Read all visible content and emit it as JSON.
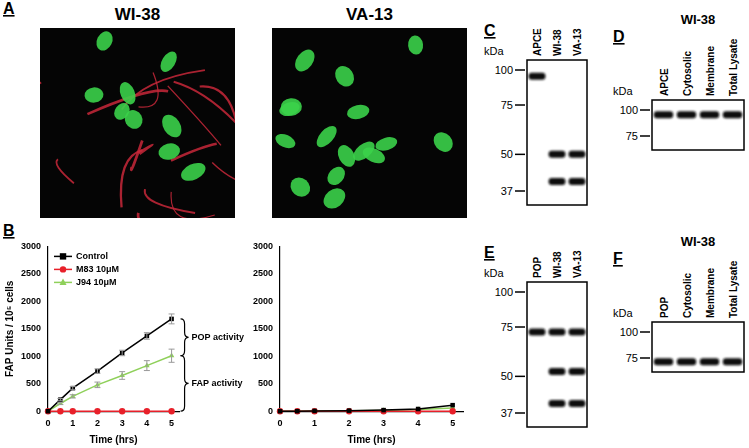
{
  "panels": [
    {
      "label": "A",
      "images": [
        {
          "title": "WI-38"
        },
        {
          "title": "VA-13"
        }
      ]
    },
    {
      "label": "B"
    },
    {
      "label": "C",
      "kda_label": "kDa",
      "markers": [
        100,
        75,
        50,
        37
      ],
      "lanes": [
        "APCE",
        "WI-38",
        "VA-13"
      ],
      "bands": [
        [
          95
        ],
        [
          50,
          40
        ],
        [
          50,
          40
        ]
      ]
    },
    {
      "label": "D",
      "title": "WI-38",
      "kda_label": "kDa",
      "markers": [
        100,
        75
      ],
      "lanes": [
        "APCE",
        "Cytosolic",
        "Membrane",
        "Total Lysate"
      ],
      "bands": [
        [
          95
        ],
        [
          95
        ],
        [
          95
        ],
        [
          95
        ]
      ]
    },
    {
      "label": "E",
      "kda_label": "kDa",
      "markers": [
        100,
        75,
        50,
        37
      ],
      "lanes": [
        "POP",
        "WI-38",
        "VA-13"
      ],
      "bands": [
        [
          72
        ],
        [
          72,
          52,
          40
        ],
        [
          72,
          52,
          40
        ]
      ]
    },
    {
      "label": "F",
      "title": "WI-38",
      "kda_label": "kDa",
      "markers": [
        100,
        75
      ],
      "lanes": [
        "POP",
        "Cytosolic",
        "Membrane",
        "Total Lysate"
      ],
      "bands": [
        [
          72
        ],
        [
          72
        ],
        [
          72
        ],
        [
          72
        ]
      ]
    }
  ],
  "chart_data": [
    {
      "type": "line",
      "x_label": "Time (hrs)",
      "y_label": "FAP Units / 10⁵ cells",
      "x": [
        0,
        0.5,
        1,
        2,
        3,
        4,
        5
      ],
      "xlim": [
        0,
        5.3
      ],
      "xticks": [
        0,
        1,
        2,
        3,
        4,
        5
      ],
      "ylim": [
        0,
        3000
      ],
      "yticks": [
        0,
        500,
        1000,
        1500,
        2000,
        2500,
        3000
      ],
      "grid": false,
      "legend": "upper left",
      "series": [
        {
          "name": "Control",
          "color": "#000000",
          "marker": "square",
          "values": [
            0,
            210,
            420,
            730,
            1060,
            1370,
            1680
          ],
          "errors": [
            0,
            20,
            30,
            40,
            50,
            60,
            90
          ]
        },
        {
          "name": "M83 10μM",
          "color": "#e8202a",
          "marker": "circle",
          "values": [
            0,
            0,
            0,
            0,
            0,
            0,
            0
          ]
        },
        {
          "name": "J94 10μM",
          "color": "#8fd05a",
          "marker": "triangle",
          "values": [
            0,
            140,
            270,
            480,
            650,
            830,
            1010
          ],
          "errors": [
            0,
            20,
            30,
            50,
            70,
            90,
            120
          ]
        }
      ],
      "annotations": [
        "POP activity",
        "FAP activity"
      ]
    },
    {
      "type": "line",
      "x_label": "Time (hrs)",
      "x": [
        0,
        0.5,
        1,
        2,
        3,
        4,
        5
      ],
      "xlim": [
        0,
        5.3
      ],
      "xticks": [
        0,
        1,
        2,
        3,
        4,
        5
      ],
      "ylim": [
        0,
        3000
      ],
      "yticks": [
        0,
        500,
        1000,
        1500,
        2000,
        2500,
        3000
      ],
      "grid": false,
      "series": [
        {
          "name": "Control",
          "color": "#000000",
          "marker": "square",
          "values": [
            0,
            0,
            5,
            10,
            20,
            40,
            110
          ]
        },
        {
          "name": "M83 10μM",
          "color": "#e8202a",
          "marker": "circle",
          "values": [
            0,
            0,
            0,
            0,
            0,
            0,
            0
          ]
        },
        {
          "name": "J94 10μM",
          "color": "#8fd05a",
          "marker": "triangle",
          "values": [
            0,
            0,
            5,
            10,
            15,
            30,
            60
          ]
        }
      ]
    }
  ]
}
